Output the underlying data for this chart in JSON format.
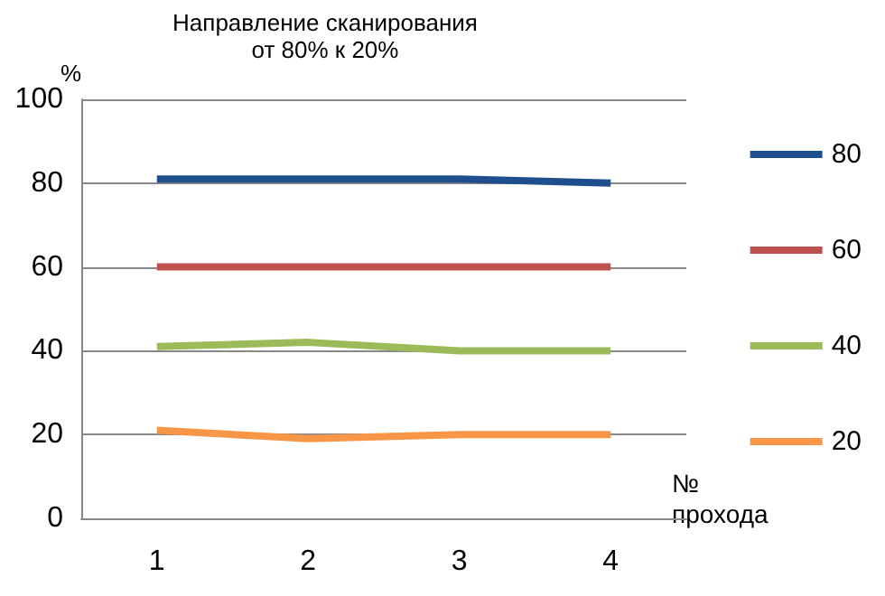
{
  "chart_data": {
    "type": "line",
    "title": "Направление сканирования\nот 80% к 20%",
    "ylabel": "%",
    "xlabel": "№\nпрохода",
    "categories": [
      "1",
      "2",
      "3",
      "4"
    ],
    "series": [
      {
        "name": "80",
        "color": "#1f4e8c",
        "values": [
          81,
          81,
          81,
          80
        ]
      },
      {
        "name": "60",
        "color": "#c0504d",
        "values": [
          60,
          60,
          60,
          60
        ]
      },
      {
        "name": "40",
        "color": "#9bbb59",
        "values": [
          41,
          42,
          40,
          40
        ]
      },
      {
        "name": "20",
        "color": "#f79646",
        "values": [
          21,
          19,
          20,
          20
        ]
      }
    ],
    "ylim": [
      0,
      100
    ],
    "yticks": [
      0,
      20,
      40,
      60,
      80,
      100
    ],
    "grid": "y",
    "legend": "right",
    "marker": "none",
    "line_style": "solid"
  }
}
